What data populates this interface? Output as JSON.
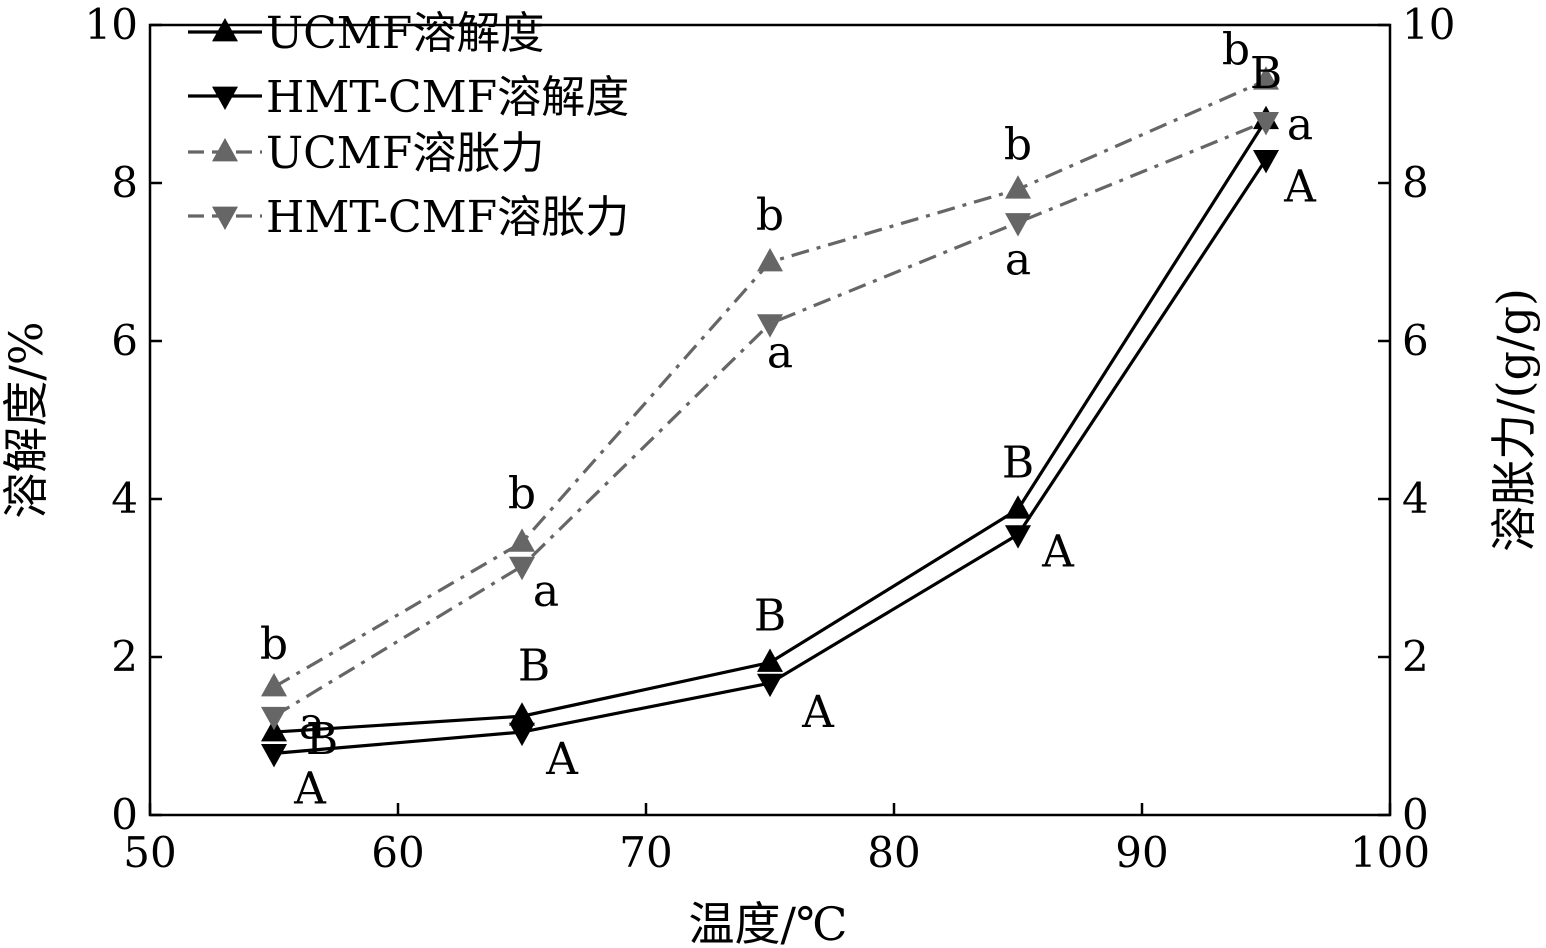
{
  "chart_data": {
    "type": "line",
    "xlabel": "温度/℃",
    "ylabel_left": "溶解度/%",
    "ylabel_right": "溶胀力/(g/g)",
    "xlim": [
      50,
      100
    ],
    "ylim_left": [
      0,
      10
    ],
    "ylim_right": [
      0,
      10
    ],
    "xticks": [
      "50",
      "60",
      "70",
      "80",
      "90",
      "100"
    ],
    "yticks_left": [
      "0",
      "2",
      "4",
      "6",
      "8",
      "10"
    ],
    "yticks_right": [
      "0",
      "2",
      "4",
      "6",
      "8",
      "10"
    ],
    "legend_position": "top-left",
    "x": [
      55,
      65,
      75,
      85,
      95
    ],
    "series": [
      {
        "name": "UCMF溶解度",
        "axis": "left",
        "marker": "triangle-up",
        "color": "#000000",
        "line_style": "solid",
        "values": [
          1.05,
          1.25,
          1.93,
          3.87,
          8.8
        ],
        "labels": [
          "B",
          "B",
          "B",
          "B",
          "B"
        ]
      },
      {
        "name": "HMT-CMF溶解度",
        "axis": "left",
        "marker": "triangle-down",
        "color": "#000000",
        "line_style": "solid",
        "values": [
          0.78,
          1.05,
          1.67,
          3.55,
          8.3
        ],
        "labels": [
          "A",
          "A",
          "A",
          "A",
          "A"
        ]
      },
      {
        "name": "UCMF溶胀力",
        "axis": "right",
        "marker": "triangle-up",
        "color": "#666666",
        "line_style": "dash-dot",
        "values": [
          1.62,
          3.45,
          7.0,
          7.92,
          9.3
        ],
        "labels": [
          "b",
          "b",
          "b",
          "b",
          "b"
        ]
      },
      {
        "name": "HMT-CMF溶胀力",
        "axis": "right",
        "marker": "triangle-down",
        "color": "#666666",
        "line_style": "dash-dot",
        "values": [
          1.25,
          3.15,
          6.22,
          7.5,
          8.78
        ],
        "labels": [
          "a",
          "a",
          "a",
          "a",
          "a"
        ]
      }
    ]
  }
}
